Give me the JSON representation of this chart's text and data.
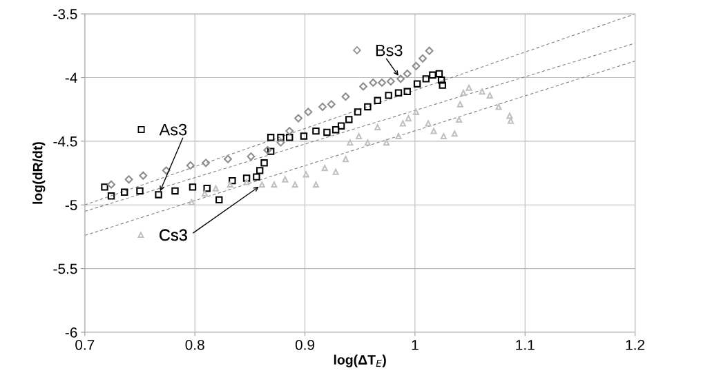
{
  "chart_data": {
    "type": "scatter",
    "xlabel": "log(ΔT$_{E}$)",
    "ylabel": "log(dR/dt)",
    "xlim": [
      0.7,
      1.2
    ],
    "xticks": [
      0.7,
      0.8,
      0.9,
      1,
      1.1,
      1.2
    ],
    "ylim": [
      -6,
      -3.5
    ],
    "yticks": [
      -6,
      -5.5,
      -5,
      -4.5,
      -4,
      -3.5
    ],
    "grid": true,
    "series": [
      {
        "name": "As3",
        "marker": "square",
        "color": "#000000",
        "x": [
          0.718,
          0.724,
          0.736,
          0.75,
          0.767,
          0.782,
          0.798,
          0.811,
          0.822,
          0.834,
          0.847,
          0.856,
          0.859,
          0.863,
          0.869,
          0.869,
          0.878,
          0.886,
          0.899,
          0.91,
          0.92,
          0.928,
          0.933,
          0.94,
          0.948,
          0.957,
          0.966,
          0.976,
          0.985,
          0.993,
          1.002,
          1.01,
          1.016,
          1.022,
          1.024,
          1.025
        ],
        "values": [
          -4.86,
          -4.93,
          -4.9,
          -4.89,
          -4.92,
          -4.89,
          -4.86,
          -4.87,
          -4.96,
          -4.81,
          -4.79,
          -4.78,
          -4.73,
          -4.67,
          -4.58,
          -4.47,
          -4.47,
          -4.47,
          -4.46,
          -4.42,
          -4.43,
          -4.41,
          -4.38,
          -4.33,
          -4.27,
          -4.23,
          -4.18,
          -4.14,
          -4.12,
          -4.11,
          -4.05,
          -4.01,
          -3.98,
          -3.97,
          -4.02,
          -4.06
        ]
      },
      {
        "name": "Bs3",
        "marker": "diamond",
        "color": "#8c8c8c",
        "x": [
          0.724,
          0.74,
          0.753,
          0.774,
          0.796,
          0.81,
          0.83,
          0.851,
          0.866,
          0.878,
          0.886,
          0.894,
          0.903,
          0.916,
          0.924,
          0.937,
          0.953,
          0.962,
          0.97,
          0.978,
          0.987,
          0.993,
          1.001,
          1.007,
          1.013
        ],
        "values": [
          -4.84,
          -4.8,
          -4.77,
          -4.73,
          -4.69,
          -4.67,
          -4.64,
          -4.62,
          -4.57,
          -4.51,
          -4.42,
          -4.32,
          -4.27,
          -4.23,
          -4.21,
          -4.15,
          -4.07,
          -4.04,
          -4.04,
          -4.03,
          -4.01,
          -3.97,
          -3.91,
          -3.85,
          -3.79
        ]
      },
      {
        "name": "Cs3",
        "marker": "triangle",
        "color": "#c0c0c0",
        "x": [
          0.797,
          0.809,
          0.819,
          0.832,
          0.847,
          0.861,
          0.872,
          0.882,
          0.891,
          0.901,
          0.91,
          0.918,
          0.928,
          0.937,
          0.941,
          0.949,
          0.957,
          0.966,
          0.974,
          0.985,
          0.989,
          0.994,
          1.001,
          1.012,
          1.017,
          1.026,
          1.036,
          1.04,
          1.041,
          1.044,
          1.049,
          1.061,
          1.068,
          1.076,
          1.086,
          1.087
        ],
        "values": [
          -4.98,
          -4.91,
          -4.87,
          -4.84,
          -4.82,
          -4.84,
          -4.84,
          -4.8,
          -4.84,
          -4.76,
          -4.84,
          -4.71,
          -4.74,
          -4.64,
          -4.51,
          -4.46,
          -4.51,
          -4.39,
          -4.51,
          -4.46,
          -4.36,
          -4.32,
          -4.27,
          -4.36,
          -4.42,
          -4.46,
          -4.44,
          -4.33,
          -4.21,
          -4.12,
          -4.08,
          -4.11,
          -4.14,
          -4.23,
          -4.3,
          -4.34
        ]
      },
      {
        "type": "line",
        "line_style": "dashed",
        "color": "#808080",
        "x": [
          0.7,
          1.2
        ],
        "values": [
          -5.0,
          -3.5
        ]
      },
      {
        "type": "line",
        "line_style": "dashed",
        "color": "#808080",
        "x": [
          0.7,
          1.2
        ],
        "values": [
          -5.05,
          -3.73
        ]
      },
      {
        "type": "line",
        "line_style": "dashed",
        "color": "#808080",
        "x": [
          0.7,
          1.2
        ],
        "values": [
          -5.24,
          -3.87
        ]
      }
    ],
    "legend": "left"
  }
}
